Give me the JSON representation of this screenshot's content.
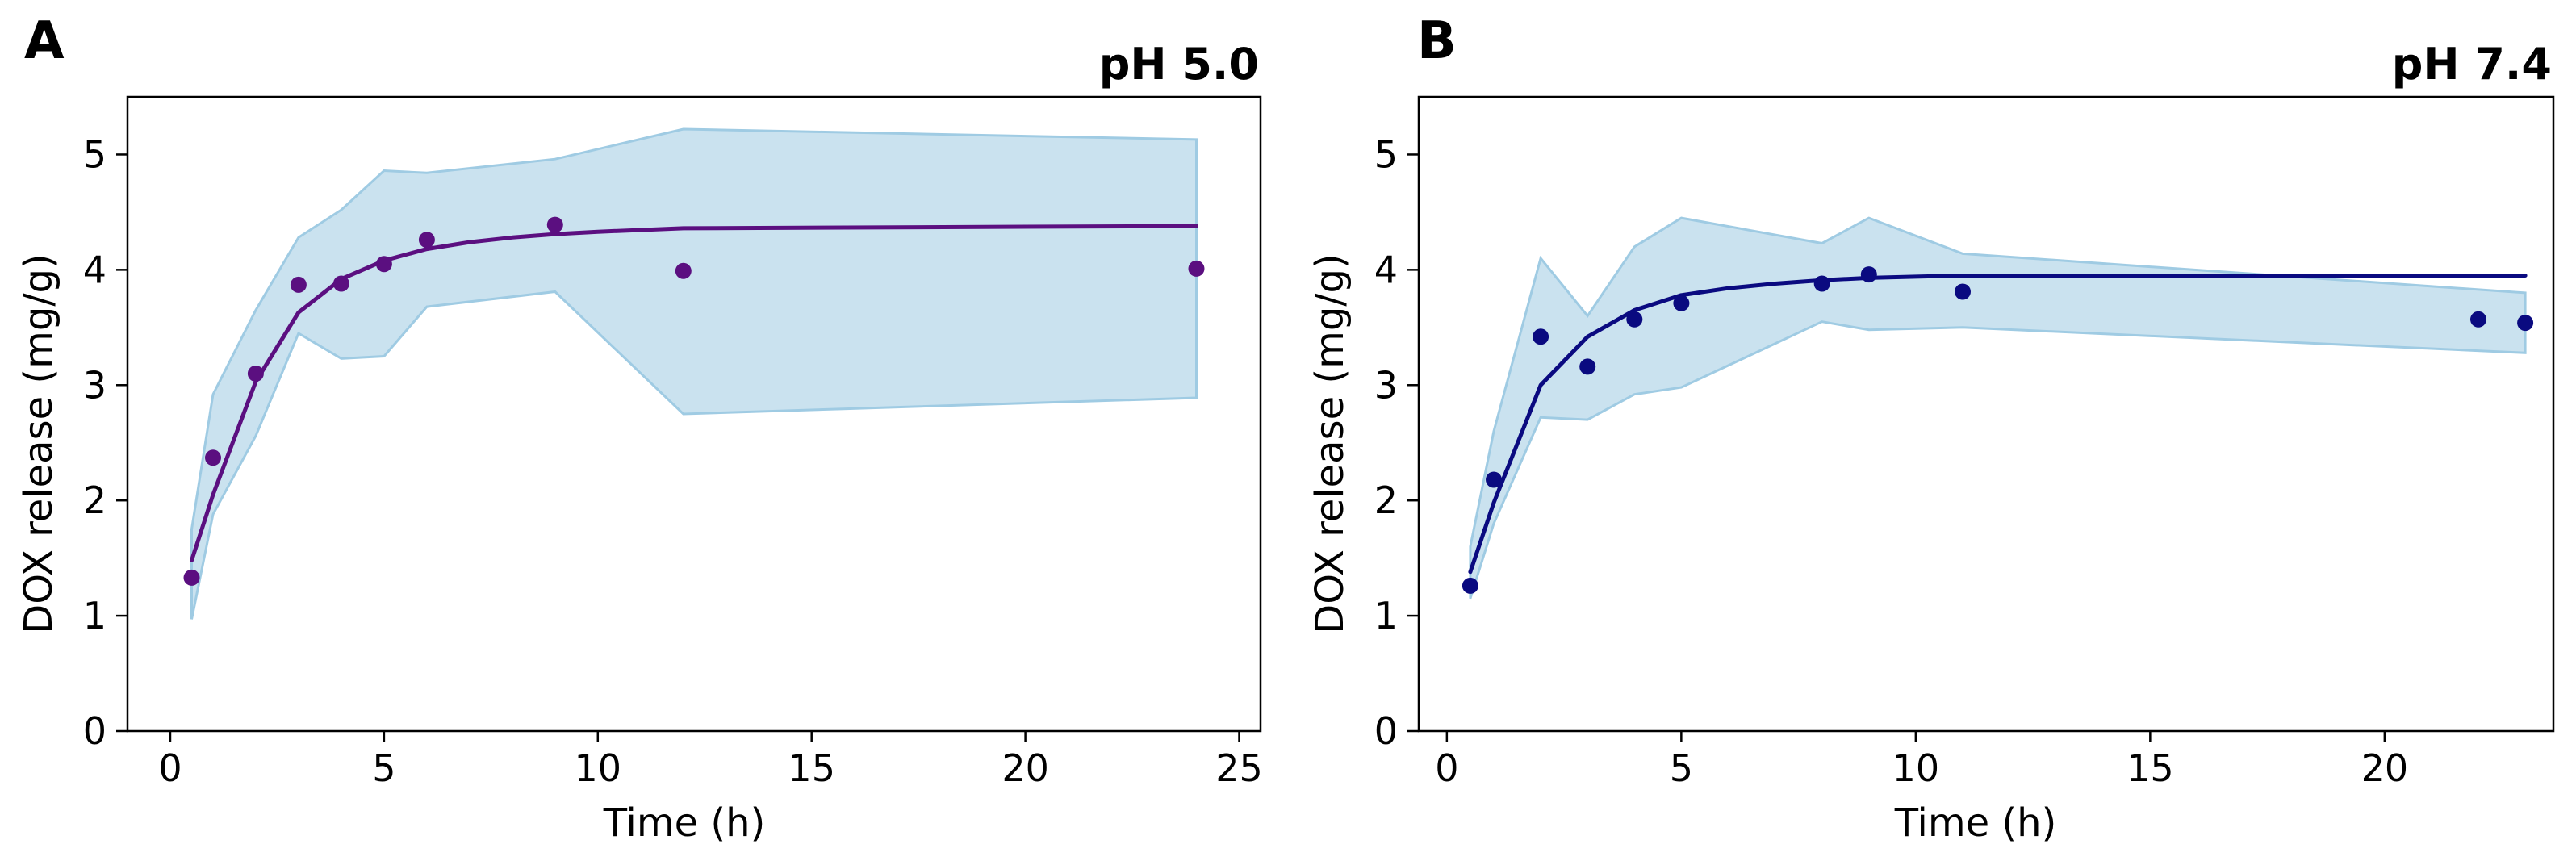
{
  "chart_data": [
    {
      "type": "line",
      "panel": "A",
      "title": "pH 5.0",
      "xlabel": "Time (h)",
      "ylabel": "DOX release (mg/g)",
      "xlim": [
        -1.0,
        25.5
      ],
      "ylim": [
        0,
        5.5
      ],
      "xticks": [
        0,
        5,
        10,
        15,
        20,
        25
      ],
      "yticks": [
        0,
        1,
        2,
        3,
        4,
        5
      ],
      "colors": {
        "series": "#5b0f80",
        "band": "#a6cfe5",
        "band_edge": "#9fcbe3"
      },
      "band": {
        "x": [
          0.5,
          1,
          2,
          3,
          4,
          5,
          6,
          9,
          12,
          24
        ],
        "upper": [
          1.75,
          2.92,
          3.65,
          4.28,
          4.52,
          4.86,
          4.84,
          4.96,
          5.22,
          5.13
        ],
        "lower": [
          0.97,
          1.88,
          2.56,
          3.45,
          3.23,
          3.25,
          3.68,
          3.81,
          2.75,
          2.89
        ]
      },
      "fit": {
        "x": [
          0.5,
          1,
          2,
          3,
          4,
          5,
          6,
          7,
          8,
          9,
          10,
          12,
          24
        ],
        "y": [
          1.48,
          2.05,
          3.03,
          3.63,
          3.92,
          4.08,
          4.18,
          4.24,
          4.28,
          4.31,
          4.33,
          4.36,
          4.38
        ]
      },
      "points": {
        "x": [
          0.5,
          1,
          2,
          3,
          4,
          5,
          6,
          9,
          12,
          24
        ],
        "y": [
          1.33,
          2.37,
          3.1,
          3.87,
          3.88,
          4.05,
          4.26,
          4.39,
          3.99,
          4.01
        ]
      }
    },
    {
      "type": "line",
      "panel": "B",
      "title": "pH 7.4",
      "xlabel": "Time (h)",
      "ylabel": "DOX release (mg/g)",
      "xlim": [
        -0.6,
        23.6
      ],
      "ylim": [
        0,
        5.5
      ],
      "xticks": [
        0,
        5,
        10,
        15,
        20
      ],
      "yticks": [
        0,
        1,
        2,
        3,
        4,
        5
      ],
      "colors": {
        "series": "#0a0a80",
        "band": "#a6cfe5",
        "band_edge": "#9fcbe3"
      },
      "band": {
        "x": [
          0.5,
          1,
          2,
          3,
          4,
          5,
          8,
          9,
          11,
          23
        ],
        "upper": [
          1.6,
          2.6,
          4.1,
          3.6,
          4.2,
          4.45,
          4.23,
          4.45,
          4.14,
          3.8
        ],
        "lower": [
          1.15,
          1.8,
          2.72,
          2.7,
          2.92,
          2.98,
          3.55,
          3.48,
          3.5,
          3.28
        ]
      },
      "fit": {
        "x": [
          0.5,
          1,
          2,
          3,
          4,
          5,
          6,
          7,
          8,
          9,
          10,
          11,
          23
        ],
        "y": [
          1.38,
          1.98,
          3.0,
          3.42,
          3.65,
          3.78,
          3.84,
          3.88,
          3.91,
          3.93,
          3.94,
          3.95,
          3.95
        ]
      },
      "points": {
        "x": [
          0.5,
          1,
          2,
          3,
          4,
          5,
          8,
          9,
          11,
          22,
          23
        ],
        "y": [
          1.26,
          2.18,
          3.42,
          3.16,
          3.57,
          3.71,
          3.88,
          3.96,
          3.81,
          3.57,
          3.54
        ]
      }
    }
  ]
}
